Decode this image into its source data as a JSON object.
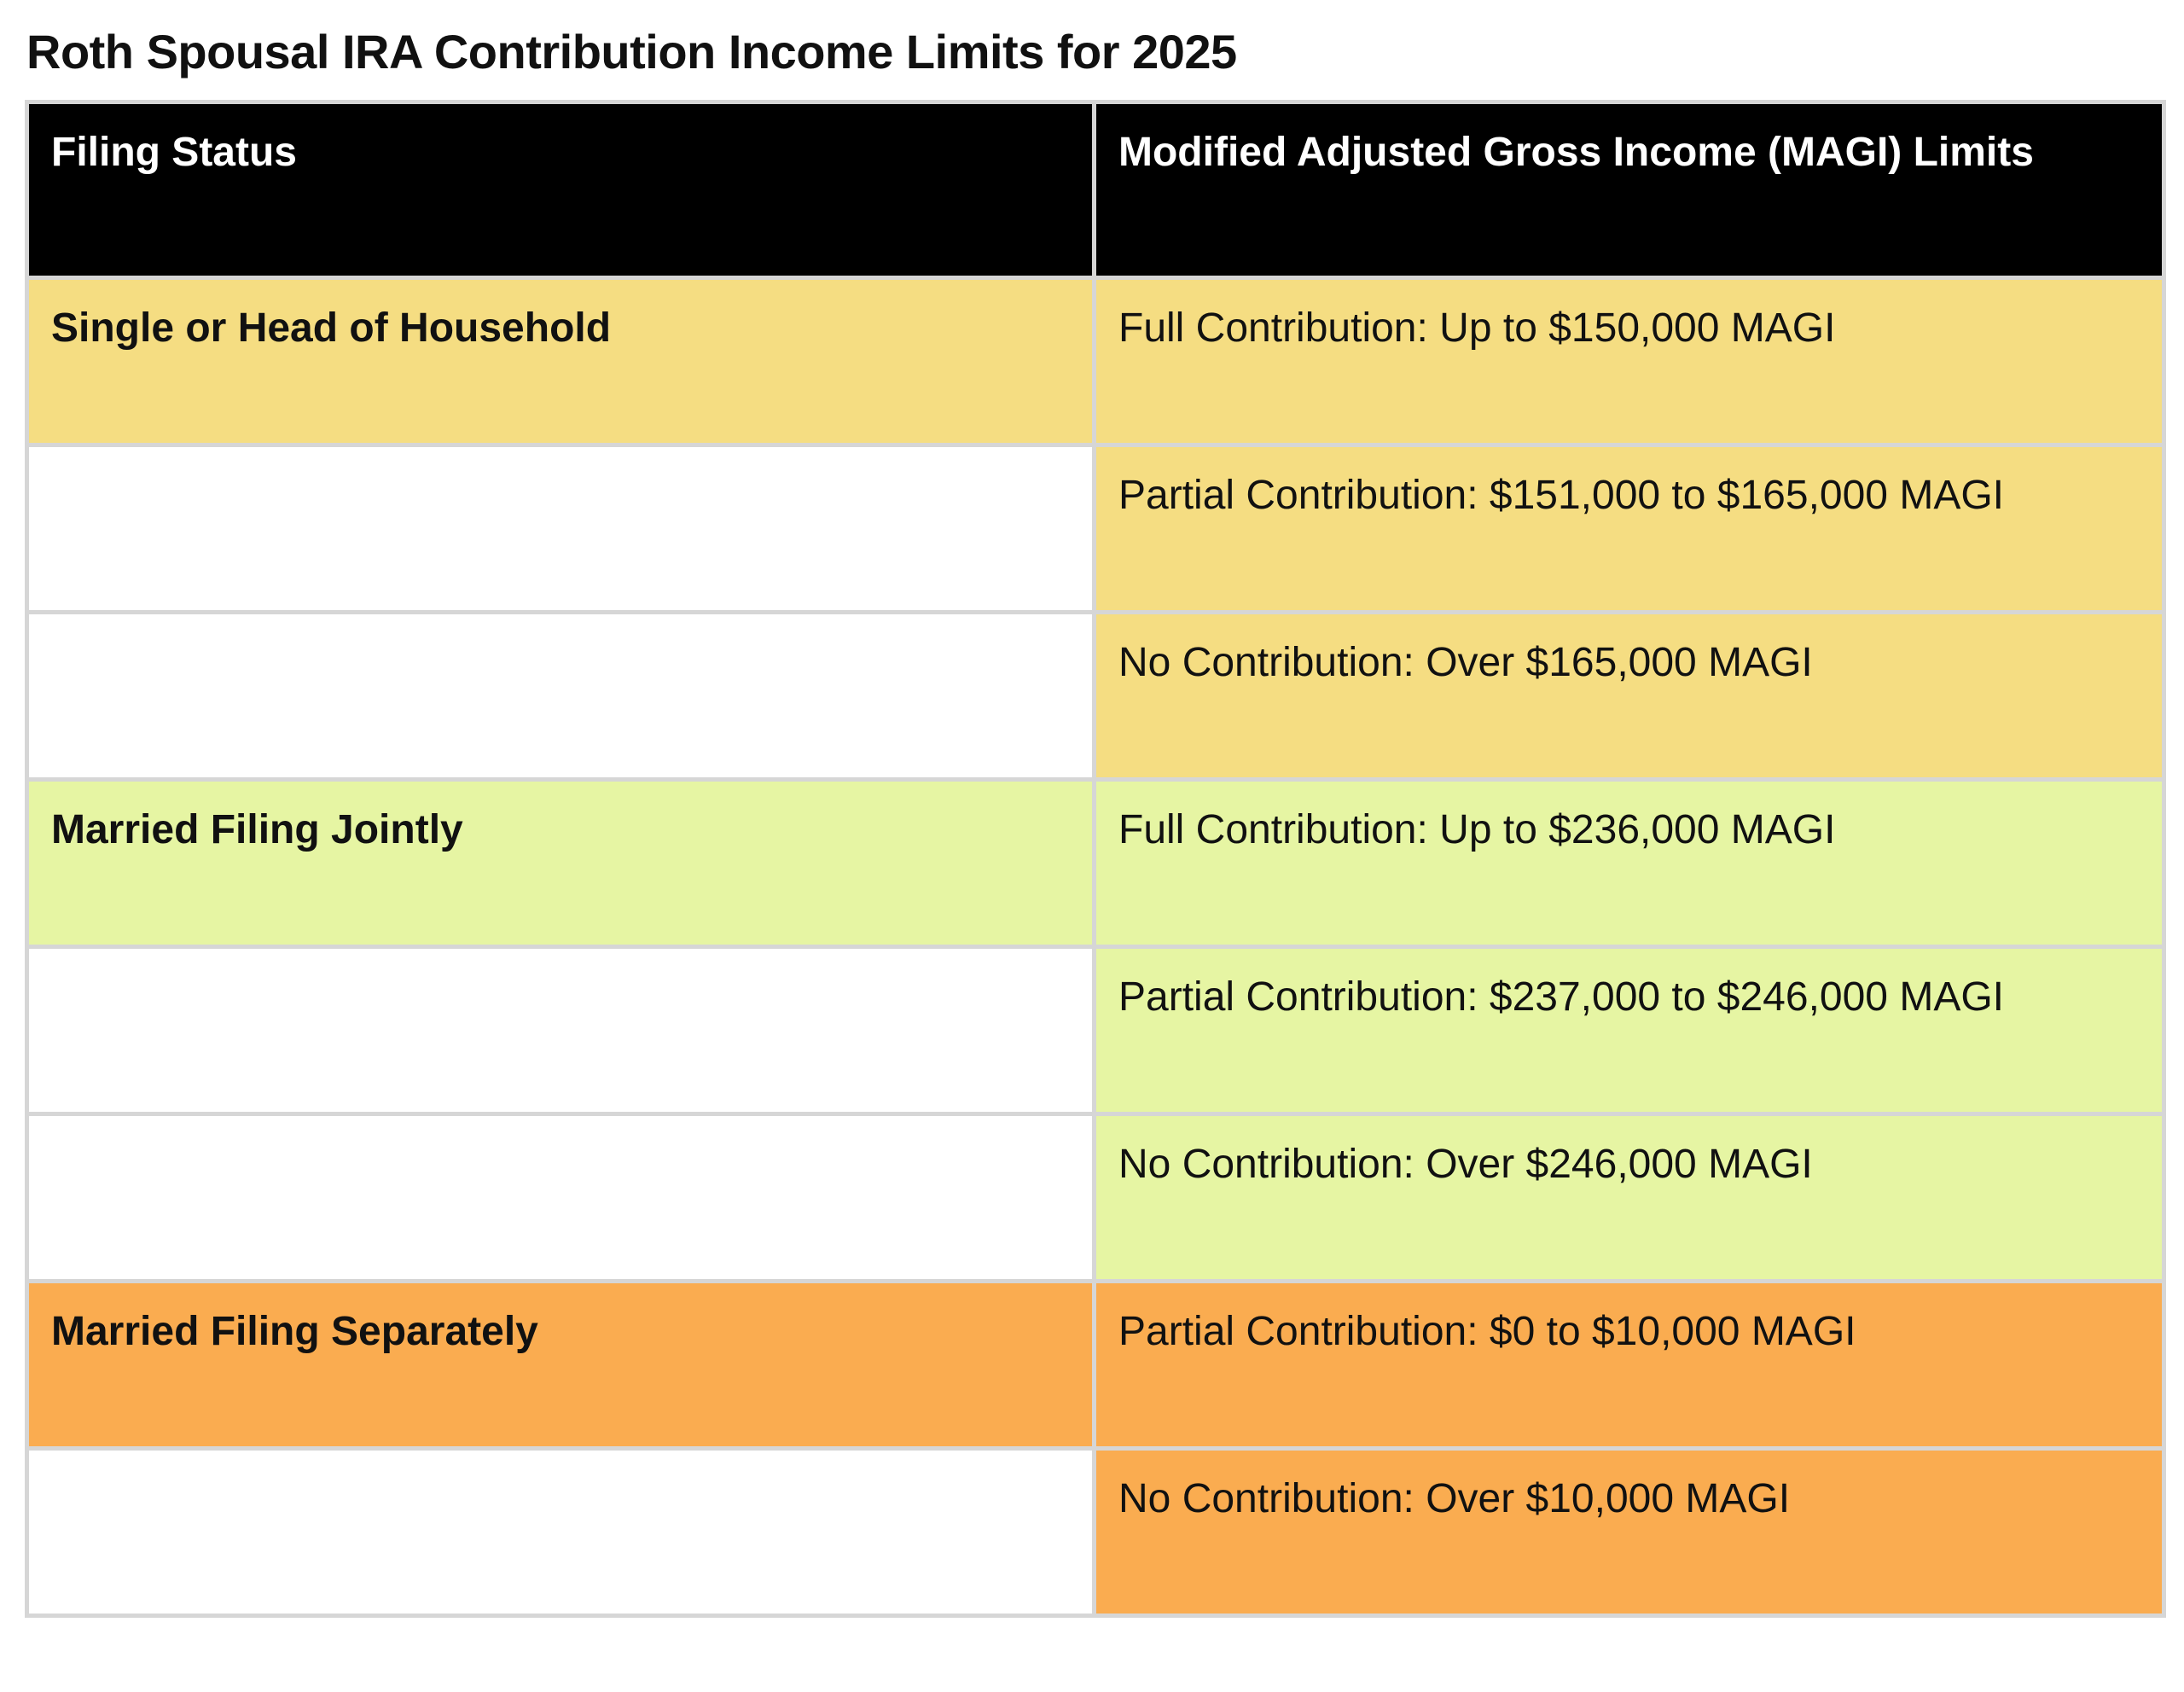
{
  "title": "Roth Spousal IRA Contribution Income Limits for 2025",
  "table": {
    "headers": [
      "Filing Status",
      "Modified Adjusted Gross Income (MAGI) Limits"
    ],
    "colors": {
      "header_bg": "#000000",
      "single_bg": "#f5dd82",
      "joint_bg": "#e6f5a3",
      "separate_bg": "#faac50",
      "blank_bg": "#ffffff"
    },
    "rows": [
      {
        "status": "Single or Head of Household",
        "limit": "Full Contribution: Up to $150,000 MAGI",
        "group": "single"
      },
      {
        "status": "",
        "limit": "Partial Contribution: $151,000 to $165,000 MAGI",
        "group": "single"
      },
      {
        "status": "",
        "limit": "No Contribution: Over $165,000 MAGI",
        "group": "single"
      },
      {
        "status": "Married Filing Jointly",
        "limit": "Full Contribution: Up to $236,000 MAGI",
        "group": "joint"
      },
      {
        "status": "",
        "limit": "Partial Contribution: $237,000 to $246,000 MAGI",
        "group": "joint"
      },
      {
        "status": "",
        "limit": "No Contribution: Over $246,000 MAGI",
        "group": "joint"
      },
      {
        "status": "Married Filing Separately",
        "limit": "Partial Contribution: $0 to $10,000 MAGI",
        "group": "separate"
      },
      {
        "status": "",
        "limit": "No Contribution: Over $10,000 MAGI",
        "group": "separate"
      }
    ]
  }
}
